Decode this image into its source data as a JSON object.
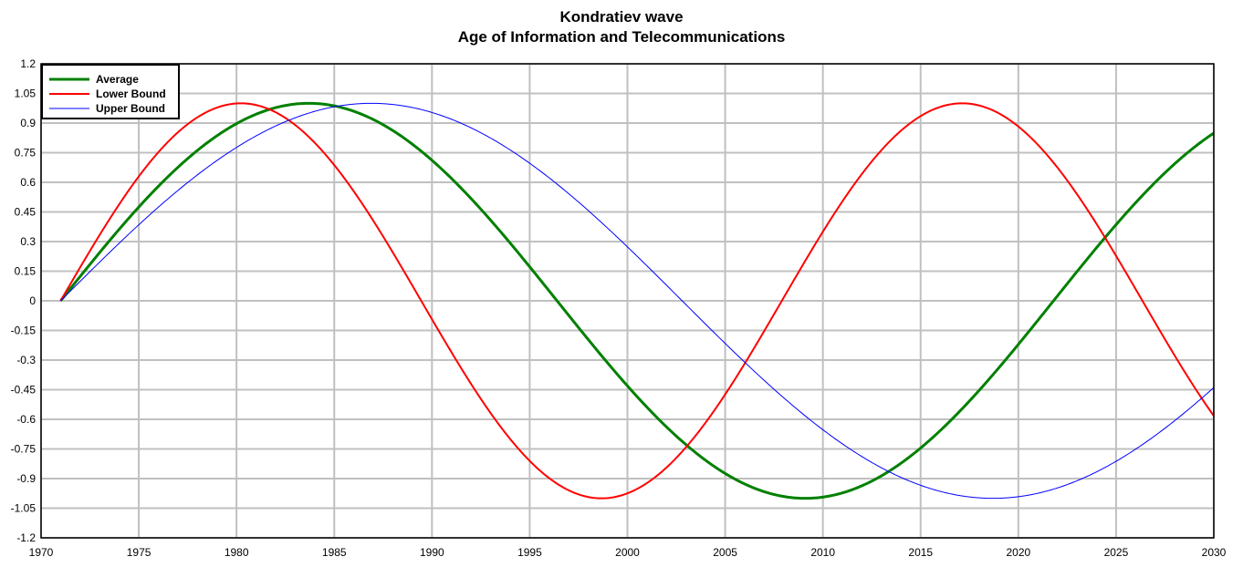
{
  "chart_data": {
    "type": "line",
    "title": "Kondratiev wave",
    "subtitle": "Age of  Information and Telecommunications",
    "xlabel": "",
    "ylabel": "",
    "xlim": [
      1970,
      2030
    ],
    "ylim": [
      -1.2,
      1.2
    ],
    "xticks": [
      "1970",
      "1975",
      "1980",
      "1985",
      "1990",
      "1995",
      "2000",
      "2005",
      "2010",
      "2015",
      "2020",
      "2025",
      "2030"
    ],
    "yticks": [
      "1.2",
      "1.05",
      "0.9",
      "0.75",
      "0.6",
      "0.45",
      "0.3",
      "0.15",
      "0",
      "-0.15",
      "-0.3",
      "-0.45",
      "-0.6",
      "-0.75",
      "-0.9",
      "-1.05",
      "-1.2"
    ],
    "grid": true,
    "legend_position": "top-left",
    "series": [
      {
        "name": "Average",
        "color": "#008000",
        "model": "sin",
        "start_year": 1971,
        "period_years": 50.8,
        "amplitude": 1,
        "x_range": [
          1971,
          2030
        ]
      },
      {
        "name": "Lower Bound",
        "color": "#ff0000",
        "model": "sin",
        "start_year": 1971,
        "period_years": 36.9,
        "amplitude": 1,
        "x_range": [
          1971,
          2030
        ]
      },
      {
        "name": "Upper Bound",
        "color": "#0000ff",
        "model": "sin",
        "start_year": 1971,
        "period_years": 63.6,
        "amplitude": 1,
        "x_range": [
          1971,
          2030
        ]
      }
    ]
  }
}
